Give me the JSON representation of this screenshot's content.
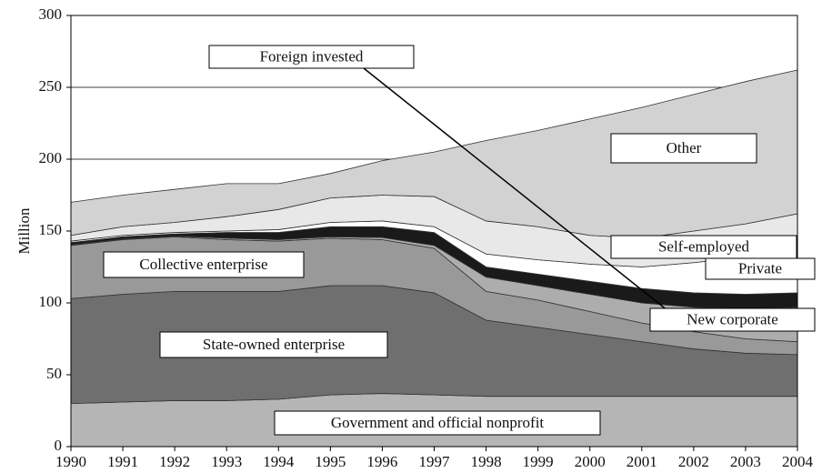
{
  "chart_data": {
    "type": "stacked_area",
    "y_label": "Million",
    "x": [
      1990,
      1991,
      1992,
      1993,
      1994,
      1995,
      1996,
      1997,
      1998,
      1999,
      2000,
      2001,
      2002,
      2003,
      2004
    ],
    "xlim": [
      1990,
      2004
    ],
    "ylim": [
      0,
      300
    ],
    "yticks": [
      0,
      50,
      100,
      150,
      200,
      250,
      300
    ],
    "grid": true,
    "series": [
      {
        "name": "Government and official nonprofit",
        "color": "#b5b5b5",
        "values": [
          30,
          31,
          32,
          32,
          33,
          36,
          37,
          36,
          35,
          35,
          35,
          35,
          35,
          35,
          35
        ]
      },
      {
        "name": "State-owned enterprise",
        "color": "#6f6f6f",
        "values": [
          73,
          75,
          76,
          76,
          75,
          76,
          75,
          71,
          53,
          48,
          43,
          38,
          33,
          30,
          29
        ]
      },
      {
        "name": "Collective enterprise",
        "color": "#999999",
        "values": [
          37,
          38,
          38,
          36,
          35,
          33,
          32,
          31,
          20,
          19,
          16,
          13,
          12,
          10,
          9
        ]
      },
      {
        "name": "New corporate",
        "color": "#adadad",
        "values": [
          0.5,
          0.5,
          0.5,
          1,
          1,
          1,
          1.5,
          2,
          10,
          10,
          12,
          14,
          17,
          21,
          24
        ]
      },
      {
        "name": "Foreign invested",
        "color": "#1a1a1a",
        "values": [
          1.5,
          1.5,
          1.5,
          4,
          5,
          7,
          7.5,
          9,
          7,
          8,
          9,
          10,
          10,
          10,
          10
        ]
      },
      {
        "name": "Private",
        "color": "#ffffff",
        "values": [
          1,
          1,
          1,
          1,
          2,
          3,
          4,
          4,
          9,
          10,
          12,
          15,
          21,
          26,
          29
        ]
      },
      {
        "name": "Self-employed",
        "color": "#e8e8e8",
        "values": [
          4,
          6,
          7,
          10,
          14,
          17,
          18,
          21,
          23,
          23,
          20,
          20,
          22,
          23,
          26
        ]
      },
      {
        "name": "Other",
        "color": "#d2d2d2",
        "values": [
          23,
          22,
          23,
          23,
          18,
          17,
          24,
          31,
          56,
          67,
          81,
          91,
          95,
          99,
          100
        ]
      }
    ]
  }
}
